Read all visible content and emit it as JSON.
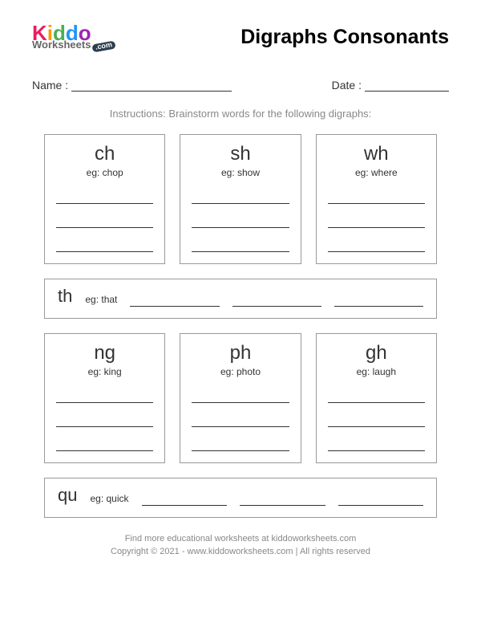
{
  "logo": {
    "brand_k": "K",
    "brand_i": "i",
    "brand_d1": "d",
    "brand_d2": "d",
    "brand_o": "o",
    "sub": "Worksheets",
    "ext": ".com"
  },
  "title": "Digraphs Consonants",
  "labels": {
    "name": "Name :",
    "date": "Date :"
  },
  "instructions": "Instructions: Brainstorm words for the following digraphs:",
  "grid1": [
    {
      "digraph": "ch",
      "example": "eg: chop"
    },
    {
      "digraph": "sh",
      "example": "eg: show"
    },
    {
      "digraph": "wh",
      "example": "eg: where"
    }
  ],
  "row1": {
    "digraph": "th",
    "example": "eg: that"
  },
  "grid2": [
    {
      "digraph": "ng",
      "example": "eg: king"
    },
    {
      "digraph": "ph",
      "example": "eg: photo"
    },
    {
      "digraph": "gh",
      "example": "eg: laugh"
    }
  ],
  "row2": {
    "digraph": "qu",
    "example": "eg: quick"
  },
  "footer": {
    "line1": "Find more educational worksheets at kiddoworksheets.com",
    "line2": "Copyright © 2021 - www.kiddoworksheets.com  |  All rights reserved"
  },
  "colors": {
    "border": "#999999",
    "text": "#333333",
    "muted": "#888888",
    "bg": "#ffffff"
  }
}
